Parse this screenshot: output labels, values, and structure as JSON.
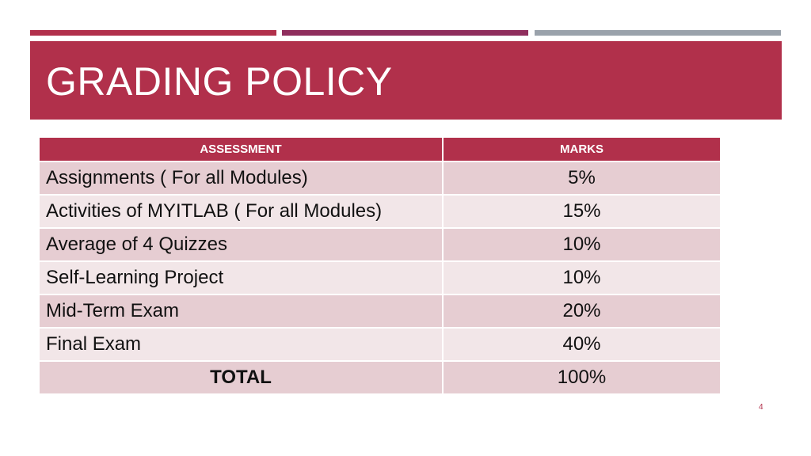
{
  "slide": {
    "title": "GRADING POLICY",
    "page_number": "4"
  },
  "colors": {
    "accent_red": "#b1304b",
    "accent_plum": "#8f2e5d",
    "accent_gray": "#9aa2ab",
    "row_dark": "#e6cdd2",
    "row_light": "#f2e6e8"
  },
  "table": {
    "headers": [
      "ASSESSMENT",
      "MARKS"
    ],
    "rows": [
      {
        "assessment": "Assignments ( For all Modules)",
        "marks": "5%"
      },
      {
        "assessment": "Activities of MYITLAB ( For all Modules)",
        "marks": "15%"
      },
      {
        "assessment": "Average of 4 Quizzes",
        "marks": "10%"
      },
      {
        "assessment": "Self-Learning Project",
        "marks": "10%"
      },
      {
        "assessment": "Mid-Term Exam",
        "marks": "20%"
      },
      {
        "assessment": "Final Exam",
        "marks": "40%"
      }
    ],
    "total": {
      "label": "TOTAL",
      "marks": "100%"
    }
  }
}
